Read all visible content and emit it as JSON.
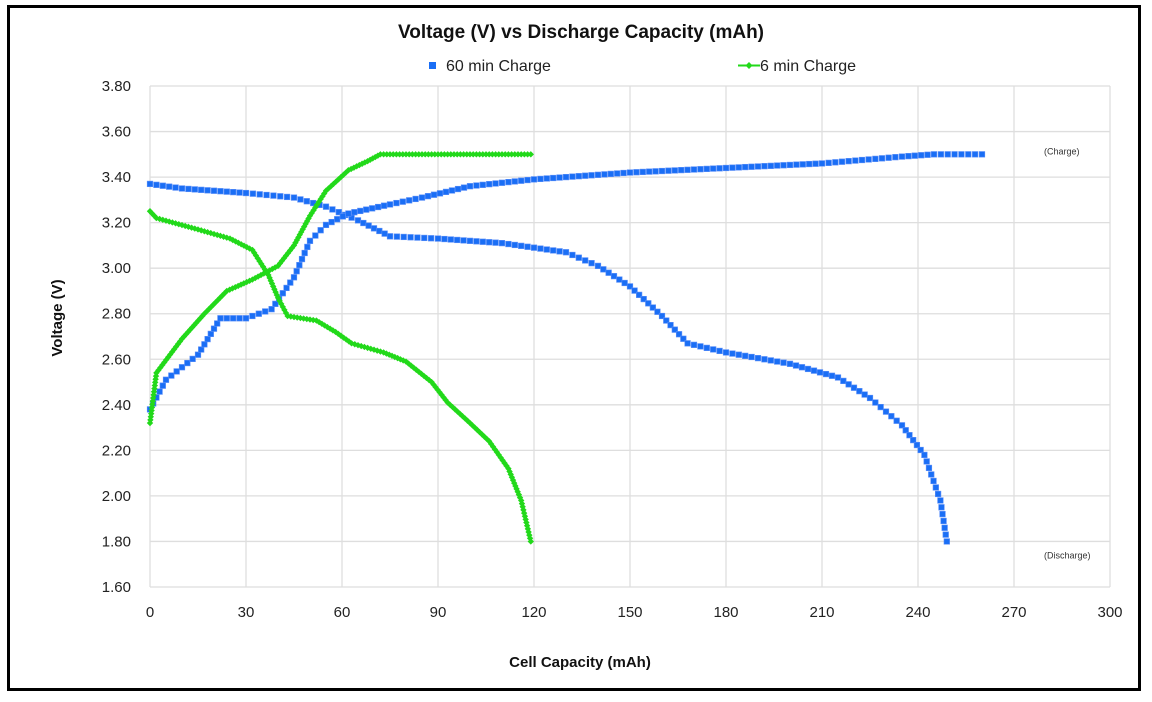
{
  "chart_data": {
    "type": "scatter",
    "title": "Voltage (V) vs Discharge Capacity (mAh)",
    "xlabel": "Cell Capacity (mAh)",
    "ylabel": "Voltage (V)",
    "xlim": [
      0,
      300
    ],
    "ylim": [
      1.6,
      3.8
    ],
    "x_ticks": [
      "0",
      "30",
      "60",
      "90",
      "120",
      "150",
      "180",
      "210",
      "240",
      "270",
      "300"
    ],
    "y_ticks": [
      "1.60",
      "1.80",
      "2.00",
      "2.20",
      "2.40",
      "2.60",
      "2.80",
      "3.00",
      "3.20",
      "3.40",
      "3.60",
      "3.80"
    ],
    "grid": true,
    "legend_position": "top",
    "annotations": [
      {
        "text": "(Charge)",
        "x": 285,
        "y": 3.5
      },
      {
        "text": "(Discharge)",
        "x": 285,
        "y": 1.77
      }
    ],
    "series": [
      {
        "name": "60 min Charge",
        "color": "#1a6ef5",
        "marker": "square",
        "line": false,
        "segments": [
          {
            "label": "discharge",
            "x": [
              0,
              10,
              30,
              45,
              55,
              65,
              75,
              90,
              110,
              120,
              130,
              140,
              150,
              160,
              168,
              180,
              200,
              215,
              225,
              235,
              242,
              247,
              249
            ],
            "y": [
              3.37,
              3.35,
              3.33,
              3.31,
              3.27,
              3.21,
              3.14,
              3.13,
              3.11,
              3.09,
              3.07,
              3.01,
              2.92,
              2.79,
              2.67,
              2.63,
              2.58,
              2.52,
              2.43,
              2.31,
              2.18,
              1.98,
              1.8
            ]
          },
          {
            "label": "charge",
            "x": [
              0,
              5,
              15,
              22,
              30,
              38,
              45,
              50,
              55,
              62,
              75,
              85,
              100,
              120,
              150,
              180,
              210,
              235,
              245,
              260
            ],
            "y": [
              2.38,
              2.51,
              2.62,
              2.78,
              2.78,
              2.82,
              2.96,
              3.12,
              3.19,
              3.24,
              3.28,
              3.31,
              3.36,
              3.39,
              3.42,
              3.44,
              3.46,
              3.49,
              3.5,
              3.5
            ]
          }
        ]
      },
      {
        "name": "6 min Charge",
        "color": "#22d91a",
        "marker": "diamond",
        "line": true,
        "segments": [
          {
            "label": "discharge",
            "x": [
              0,
              2,
              15,
              25,
              32,
              37,
              40,
              43,
              52,
              58,
              63,
              73,
              80,
              88,
              93,
              100,
              106,
              112,
              116,
              119
            ],
            "y": [
              3.25,
              3.22,
              3.17,
              3.13,
              3.08,
              2.97,
              2.87,
              2.79,
              2.77,
              2.72,
              2.67,
              2.63,
              2.59,
              2.5,
              2.41,
              2.32,
              2.24,
              2.12,
              1.98,
              1.8
            ]
          },
          {
            "label": "charge",
            "x": [
              0,
              2,
              10,
              17,
              24,
              32,
              40,
              45,
              50,
              55,
              62,
              68,
              72,
              119
            ],
            "y": [
              2.32,
              2.54,
              2.69,
              2.8,
              2.9,
              2.95,
              3.01,
              3.1,
              3.23,
              3.34,
              3.43,
              3.47,
              3.5,
              3.5
            ]
          }
        ]
      }
    ]
  }
}
